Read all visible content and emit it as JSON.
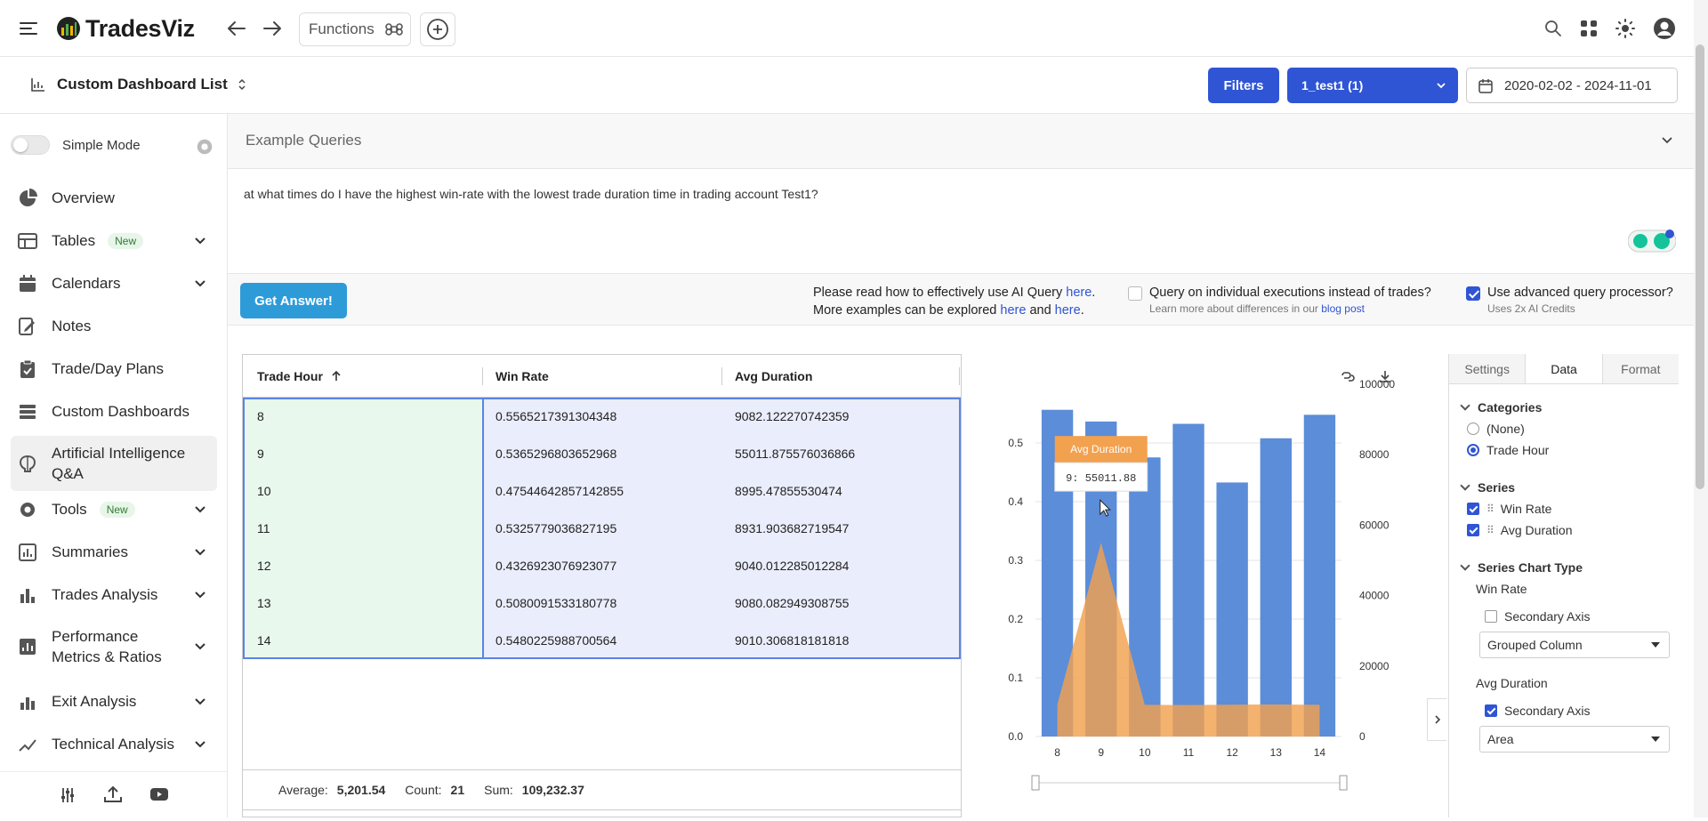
{
  "app": {
    "name": "TradesViz"
  },
  "topbar": {
    "functions_label": "Functions"
  },
  "subbar": {
    "dashboard_selector": "Custom Dashboard List",
    "filters_label": "Filters",
    "account_selector": "1_test1 (1)",
    "date_range": "2020-02-02 - 2024-11-01"
  },
  "sidebar": {
    "simple_mode_label": "Simple Mode",
    "items": [
      {
        "label": "Overview"
      },
      {
        "label": "Tables",
        "badge": "New"
      },
      {
        "label": "Calendars"
      },
      {
        "label": "Notes"
      },
      {
        "label": "Trade/Day Plans"
      },
      {
        "label": "Custom Dashboards"
      },
      {
        "label": "Artificial Intelligence Q&A"
      },
      {
        "label": "Tools",
        "badge": "New"
      },
      {
        "label": "Summaries"
      },
      {
        "label": "Trades Analysis"
      },
      {
        "label": "Performance Metrics & Ratios"
      },
      {
        "label": "Exit Analysis"
      },
      {
        "label": "Technical Analysis"
      }
    ]
  },
  "examples": {
    "title": "Example Queries"
  },
  "query": {
    "text": "at what times do I have the highest win-rate with the lowest trade duration time in trading account Test1?"
  },
  "actions": {
    "get_answer": "Get Answer!",
    "help_line1": "Please read how to effectively use AI Query",
    "help_here1": "here",
    "help_line2": "More examples can be explored",
    "help_here2": "here",
    "help_and": "and",
    "help_here3": "here",
    "opt_individual": "Query on individual executions instead of trades?",
    "opt_individual_sub": "Learn more about differences in our",
    "opt_individual_link": "blog post",
    "opt_advanced": "Use advanced query processor?",
    "opt_advanced_sub": "Uses 2x AI Credits"
  },
  "grid": {
    "columns": [
      "Trade Hour",
      "Win Rate",
      "Avg Duration"
    ],
    "rows": [
      [
        "8",
        "0.5565217391304348",
        "9082.122270742359"
      ],
      [
        "9",
        "0.5365296803652968",
        "55011.875576036866"
      ],
      [
        "10",
        "0.47544642857142855",
        "8995.47855530474"
      ],
      [
        "11",
        "0.5325779036827195",
        "8931.903682719547"
      ],
      [
        "12",
        "0.4326923076923077",
        "9040.012285012284"
      ],
      [
        "13",
        "0.5080091533180778",
        "9080.082949308755"
      ],
      [
        "14",
        "0.5480225988700564",
        "9010.306818181818"
      ]
    ],
    "footer": {
      "average_label": "Average:",
      "average": "5,201.54",
      "count_label": "Count:",
      "count": "21",
      "sum_label": "Sum:",
      "sum": "109,232.37"
    }
  },
  "panel": {
    "tabs": [
      "Settings",
      "Data",
      "Format"
    ],
    "categories_title": "Categories",
    "cat_none": "(None)",
    "cat_trade_hour": "Trade Hour",
    "series_title": "Series",
    "series": [
      "Win Rate",
      "Avg Duration"
    ],
    "series_chart_type_title": "Series Chart Type",
    "winrate_label": "Win Rate",
    "winrate_secondary": "Secondary Axis",
    "winrate_type": "Grouped Column",
    "avgdur_label": "Avg Duration",
    "avgdur_secondary": "Secondary Axis",
    "avgdur_type": "Area"
  },
  "colors": {
    "bar": "#5b8dd9",
    "area": "#f2a14f",
    "accent": "#2f55d4"
  },
  "chart_data": {
    "type": "bar",
    "categories": [
      "8",
      "9",
      "10",
      "11",
      "12",
      "13",
      "14"
    ],
    "series": [
      {
        "name": "Win Rate",
        "type": "column",
        "axis": "primary",
        "values": [
          0.5565,
          0.5365,
          0.4754,
          0.5326,
          0.4327,
          0.508,
          0.548
        ]
      },
      {
        "name": "Avg Duration",
        "type": "area",
        "axis": "secondary",
        "values": [
          9082.12,
          55011.88,
          8995.48,
          8931.9,
          9040.01,
          9080.08,
          9010.31
        ]
      }
    ],
    "ylim": [
      0,
      0.6
    ],
    "y_ticks": [
      "0.0",
      "0.1",
      "0.2",
      "0.3",
      "0.4",
      "0.5"
    ],
    "y2lim": [
      0,
      100000
    ],
    "y2_ticks": [
      "0",
      "20000",
      "40000",
      "60000",
      "80000",
      "100000"
    ],
    "tooltip": {
      "title": "Avg Duration",
      "text": "9: 55011.88"
    }
  }
}
